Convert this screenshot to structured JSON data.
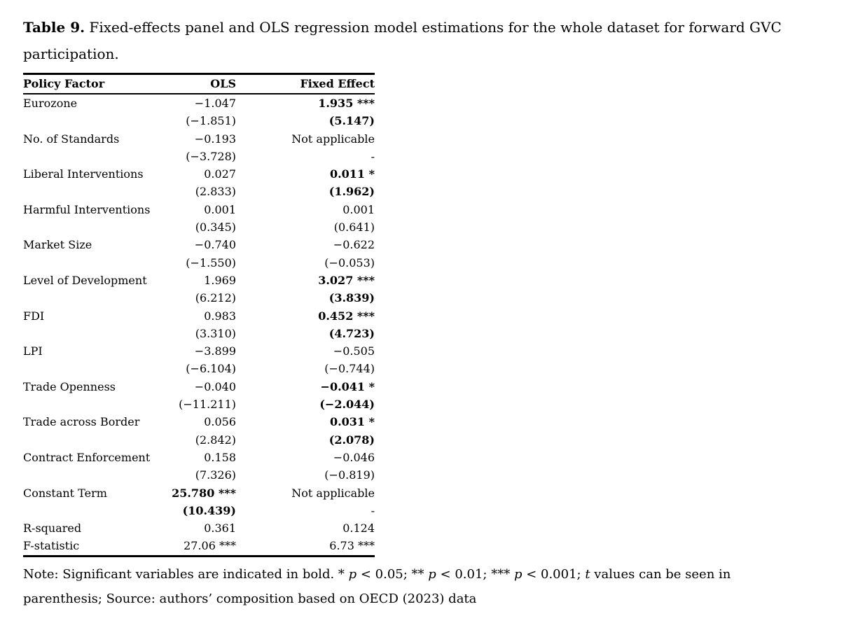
{
  "colors": {
    "background": "#ffffff",
    "text": "#000000",
    "rule": "#000000"
  },
  "caption": {
    "label": "Table 9.",
    "line1_rest": " Fixed-effects panel and OLS regression model estimations for the whole dataset for forward GVC",
    "line2": "participation."
  },
  "table": {
    "columns": [
      {
        "label": "Policy Factor"
      },
      {
        "label": "OLS"
      },
      {
        "label": "Fixed Effect"
      }
    ],
    "rows": [
      {
        "factor": "Eurozone",
        "ols": "−1.047",
        "ols_bold": false,
        "fe": "1.935 ***",
        "fe_bold": true
      },
      {
        "factor": "",
        "ols": "(−1.851)",
        "ols_bold": false,
        "fe": "(5.147)",
        "fe_bold": true
      },
      {
        "factor": "No. of Standards",
        "ols": "−0.193",
        "ols_bold": false,
        "fe": "Not applicable",
        "fe_bold": false
      },
      {
        "factor": "",
        "ols": "(−3.728)",
        "ols_bold": false,
        "fe": "-",
        "fe_bold": false
      },
      {
        "factor": "Liberal Interventions",
        "ols": "0.027",
        "ols_bold": false,
        "fe": "0.011 *",
        "fe_bold": true
      },
      {
        "factor": "",
        "ols": "(2.833)",
        "ols_bold": false,
        "fe": "(1.962)",
        "fe_bold": true
      },
      {
        "factor": "Harmful Interventions",
        "ols": "0.001",
        "ols_bold": false,
        "fe": "0.001",
        "fe_bold": false
      },
      {
        "factor": "",
        "ols": "(0.345)",
        "ols_bold": false,
        "fe": "(0.641)",
        "fe_bold": false
      },
      {
        "factor": "Market Size",
        "ols": "−0.740",
        "ols_bold": false,
        "fe": "−0.622",
        "fe_bold": false
      },
      {
        "factor": "",
        "ols": "(−1.550)",
        "ols_bold": false,
        "fe": "(−0.053)",
        "fe_bold": false
      },
      {
        "factor": "Level of Development",
        "ols": "1.969",
        "ols_bold": false,
        "fe": "3.027 ***",
        "fe_bold": true
      },
      {
        "factor": "",
        "ols": "(6.212)",
        "ols_bold": false,
        "fe": "(3.839)",
        "fe_bold": true
      },
      {
        "factor": "FDI",
        "ols": "0.983",
        "ols_bold": false,
        "fe": "0.452 ***",
        "fe_bold": true
      },
      {
        "factor": "",
        "ols": "(3.310)",
        "ols_bold": false,
        "fe": "(4.723)",
        "fe_bold": true
      },
      {
        "factor": "LPI",
        "ols": "−3.899",
        "ols_bold": false,
        "fe": "−0.505",
        "fe_bold": false
      },
      {
        "factor": "",
        "ols": "(−6.104)",
        "ols_bold": false,
        "fe": "(−0.744)",
        "fe_bold": false
      },
      {
        "factor": "Trade Openness",
        "ols": "−0.040",
        "ols_bold": false,
        "fe": "−0.041 *",
        "fe_bold": true
      },
      {
        "factor": "",
        "ols": "(−11.211)",
        "ols_bold": false,
        "fe": "(−2.044)",
        "fe_bold": true
      },
      {
        "factor": "Trade across Border",
        "ols": "0.056",
        "ols_bold": false,
        "fe": "0.031 *",
        "fe_bold": true
      },
      {
        "factor": "",
        "ols": "(2.842)",
        "ols_bold": false,
        "fe": "(2.078)",
        "fe_bold": true
      },
      {
        "factor": "Contract Enforcement",
        "ols": "0.158",
        "ols_bold": false,
        "fe": "−0.046",
        "fe_bold": false
      },
      {
        "factor": "",
        "ols": "(7.326)",
        "ols_bold": false,
        "fe": "(−0.819)",
        "fe_bold": false
      },
      {
        "factor": "Constant Term",
        "ols": "25.780 ***",
        "ols_bold": true,
        "fe": "Not applicable",
        "fe_bold": false
      },
      {
        "factor": "",
        "ols": "(10.439)",
        "ols_bold": true,
        "fe": "-",
        "fe_bold": false
      },
      {
        "factor": "R-squared",
        "ols": "0.361",
        "ols_bold": false,
        "fe": "0.124",
        "fe_bold": false
      },
      {
        "factor": "F-statistic",
        "ols": "27.06 ***",
        "ols_bold": false,
        "fe": "6.73 ***",
        "fe_bold": false
      }
    ]
  },
  "note": {
    "line1_parts": [
      {
        "text": "Note: Significant variables are indicated in bold. * ",
        "italic": false
      },
      {
        "text": "p",
        "italic": true
      },
      {
        "text": " < 0.05; ** ",
        "italic": false
      },
      {
        "text": "p",
        "italic": true
      },
      {
        "text": " < 0.01; *** ",
        "italic": false
      },
      {
        "text": "p",
        "italic": true
      },
      {
        "text": " < 0.001; ",
        "italic": false
      },
      {
        "text": "t",
        "italic": true
      },
      {
        "text": " values can be seen in",
        "italic": false
      }
    ],
    "line2": "parenthesis; Source: authors’ composition based on OECD (2023) data"
  }
}
